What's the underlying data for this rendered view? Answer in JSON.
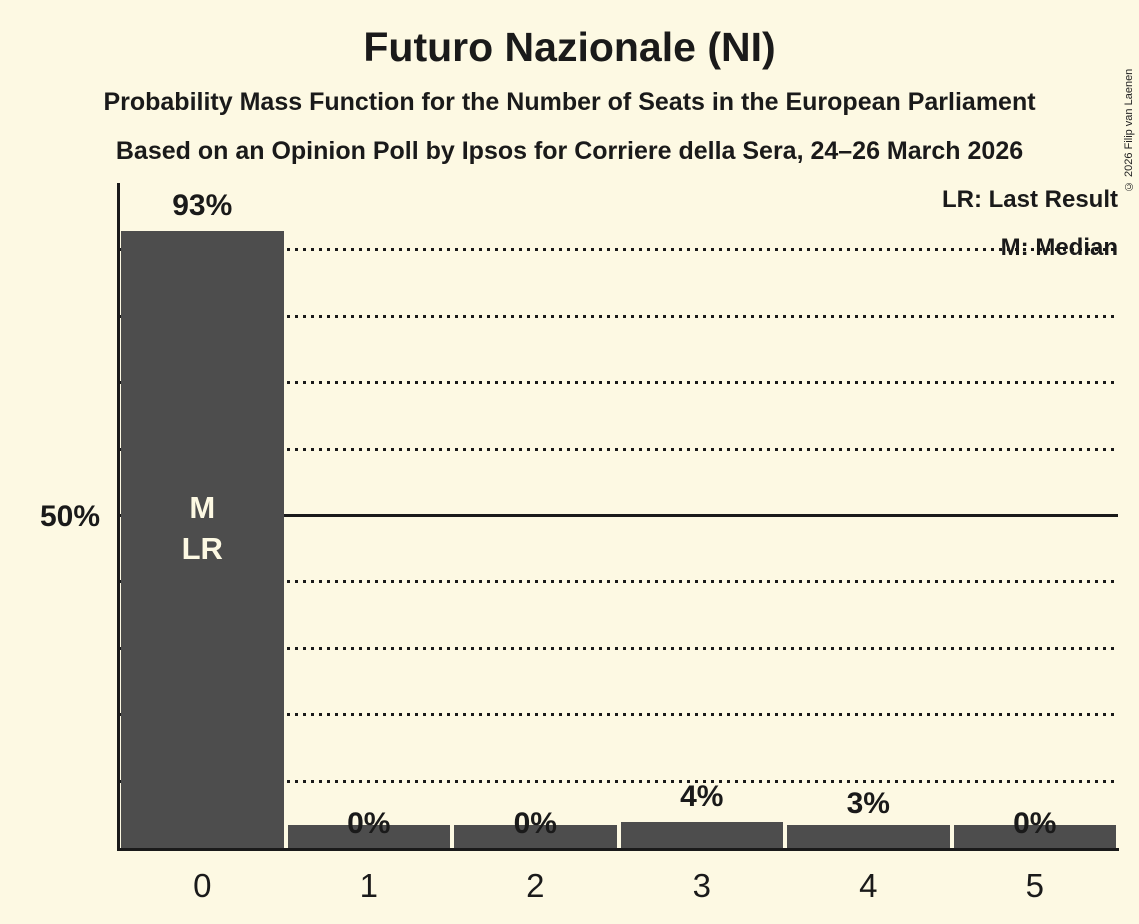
{
  "header": {
    "title": "Futuro Nazionale (NI)",
    "subtitle1": "Probability Mass Function for the Number of Seats in the European Parliament",
    "subtitle2": "Based on an Opinion Poll by Ipsos for Corriere della Sera, 24–26 March 2026"
  },
  "copyright": "© 2026 Filip van Laenen",
  "legend": {
    "lr": "LR: Last Result",
    "m": "M: Median"
  },
  "colors": {
    "background": "#fdf9e3",
    "bar": "#4d4d4d",
    "text": "#1a1a1a",
    "bar_inner_label": "#fdf9e3"
  },
  "chart_data": {
    "type": "bar",
    "title": "Futuro Nazionale (NI)",
    "categories": [
      "0",
      "1",
      "2",
      "3",
      "4",
      "5"
    ],
    "values": [
      93,
      0,
      0,
      4,
      3,
      0
    ],
    "value_labels": [
      "93%",
      "0%",
      "0%",
      "4%",
      "3%",
      "0%"
    ],
    "ylim": [
      0,
      100
    ],
    "y_reference": {
      "value": 50,
      "label": "50%"
    },
    "gridlines": {
      "dotted": [
        10,
        20,
        30,
        40,
        60,
        70,
        80,
        90
      ],
      "solid": [
        50
      ]
    },
    "annotations": [
      {
        "category": "0",
        "lines": [
          "M",
          "LR"
        ]
      }
    ],
    "legend_entries": [
      "LR: Last Result",
      "M: Median"
    ],
    "legend_position": "top-right",
    "grid": "horizontal-dotted"
  }
}
